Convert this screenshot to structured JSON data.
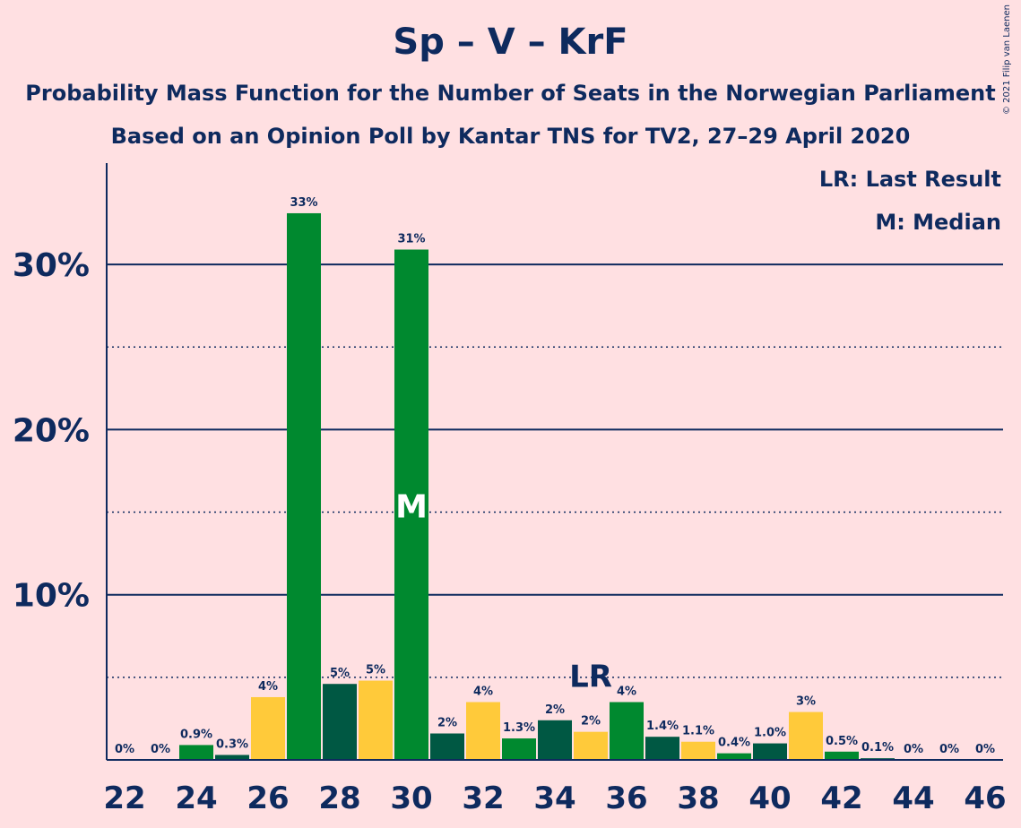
{
  "title": "Sp – V – KrF",
  "subtitle_line1": "Probability Mass Function for the Number of Seats in the Norwegian Parliament",
  "subtitle_line2": "Based on an Opinion Poll by Kantar TNS for TV2, 27–29 April 2020",
  "copyright": "© 2021 Filip van Laenen",
  "legend": {
    "last_result": "LR: Last Result",
    "median": "M: Median"
  },
  "colors": {
    "background": "#FFE0E2",
    "text": "#0E2A5E",
    "green": "#00892F",
    "dark_green": "#005843",
    "yellow": "#FFCA3A"
  },
  "chart_data": {
    "type": "bar",
    "x": [
      22,
      23,
      24,
      25,
      26,
      27,
      28,
      29,
      30,
      31,
      32,
      33,
      34,
      35,
      36,
      37,
      38,
      39,
      40,
      41,
      42,
      43,
      44,
      45,
      46
    ],
    "values": [
      0,
      0,
      0.9,
      0.3,
      3.8,
      33.1,
      4.6,
      4.8,
      30.9,
      1.6,
      3.5,
      1.3,
      2.4,
      1.7,
      3.5,
      1.4,
      1.1,
      0.4,
      1.0,
      2.9,
      0.5,
      0.1,
      0,
      0,
      0
    ],
    "value_labels": [
      "0%",
      "0%",
      "0.9%",
      "0.3%",
      "4%",
      "33%",
      "5%",
      "5%",
      "31%",
      "2%",
      "4%",
      "1.3%",
      "2%",
      "2%",
      "4%",
      "1.4%",
      "1.1%",
      "0.4%",
      "1.0%",
      "3%",
      "0.5%",
      "0.1%",
      "0%",
      "0%",
      "0%"
    ],
    "bar_colors": [
      "green",
      "green",
      "green",
      "dark_green",
      "yellow",
      "green",
      "dark_green",
      "yellow",
      "green",
      "dark_green",
      "yellow",
      "green",
      "dark_green",
      "yellow",
      "green",
      "dark_green",
      "yellow",
      "green",
      "dark_green",
      "yellow",
      "green",
      "dark_green",
      "yellow",
      "green",
      "dark_green"
    ],
    "x_tick_labels": [
      "22",
      "24",
      "26",
      "28",
      "30",
      "32",
      "34",
      "36",
      "38",
      "40",
      "42",
      "44",
      "46"
    ],
    "y_tick_labels": [
      "10%",
      "20%",
      "30%"
    ],
    "ylim": [
      0,
      35
    ],
    "major_gridlines": [
      10,
      20,
      30
    ],
    "minor_gridlines": [
      5,
      15,
      25
    ],
    "median_seat": 30,
    "median_marker": "M",
    "last_result_seat": 35,
    "last_result_marker": "LR"
  }
}
